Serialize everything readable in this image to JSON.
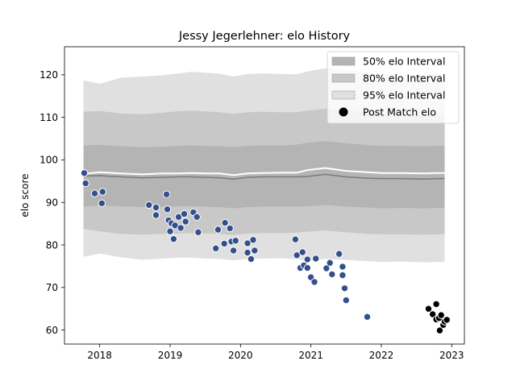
{
  "chart_data": {
    "type": "scatter",
    "title": "Jessy Jegerlehner: elo History",
    "xlabel": "",
    "ylabel": "elo score",
    "xlim": [
      2017.5,
      2023.18
    ],
    "ylim": [
      56.7,
      126.6
    ],
    "x_ticks": [
      {
        "value": 2018,
        "label": "2018"
      },
      {
        "value": 2019,
        "label": "2019"
      },
      {
        "value": 2020,
        "label": "2020"
      },
      {
        "value": 2021,
        "label": "2021"
      },
      {
        "value": 2022,
        "label": "2022"
      },
      {
        "value": 2023,
        "label": "2023"
      }
    ],
    "y_ticks": [
      {
        "value": 60,
        "label": "60"
      },
      {
        "value": 70,
        "label": "70"
      },
      {
        "value": 80,
        "label": "80"
      },
      {
        "value": 90,
        "label": "90"
      },
      {
        "value": 100,
        "label": "100"
      },
      {
        "value": 110,
        "label": "110"
      },
      {
        "value": 120,
        "label": "120"
      }
    ],
    "grid": false,
    "legend_position": "top-right",
    "legend": [
      {
        "label": "50% elo Interval",
        "color": "#b4b4b4",
        "kind": "patch"
      },
      {
        "label": "80% elo Interval",
        "color": "#c8c8c8",
        "kind": "patch"
      },
      {
        "label": "95% elo Interval",
        "color": "#e0e0e0",
        "kind": "patch"
      },
      {
        "label": "Post Match elo",
        "color": "#000000",
        "kind": "marker"
      }
    ],
    "band_x": [
      2017.77,
      2018.0,
      2018.3,
      2018.6,
      2018.9,
      2019.1,
      2019.3,
      2019.5,
      2019.7,
      2019.9,
      2020.1,
      2020.3,
      2020.6,
      2020.8,
      2020.95,
      2021.2,
      2021.5,
      2021.8,
      2022.0,
      2022.3,
      2022.6,
      2022.82,
      2022.9
    ],
    "median": [
      96.2,
      96.3,
      96.0,
      95.8,
      95.9,
      96.0,
      96.0,
      95.9,
      95.8,
      95.5,
      95.9,
      96.0,
      96.0,
      96.0,
      96.1,
      96.6,
      96.0,
      95.7,
      95.6,
      95.6,
      95.5,
      95.6,
      95.6
    ],
    "mean": [
      96.7,
      97.1,
      96.8,
      96.6,
      96.8,
      96.8,
      96.9,
      96.8,
      96.8,
      96.4,
      96.8,
      96.9,
      97.0,
      97.0,
      97.6,
      98.1,
      97.4,
      97.1,
      96.9,
      96.9,
      96.8,
      96.9,
      96.9
    ],
    "band50_low": [
      89.0,
      89.3,
      89.1,
      88.9,
      89.0,
      89.1,
      89.1,
      89.0,
      88.9,
      88.6,
      88.9,
      89.0,
      89.0,
      89.0,
      89.1,
      89.4,
      89.0,
      88.8,
      88.6,
      88.7,
      88.6,
      88.7,
      88.7
    ],
    "band50_high": [
      103.4,
      103.5,
      103.2,
      103.0,
      103.1,
      103.3,
      103.4,
      103.3,
      103.2,
      103.0,
      103.3,
      103.4,
      103.4,
      103.6,
      104.0,
      104.4,
      103.9,
      103.5,
      103.3,
      103.3,
      103.2,
      103.3,
      103.3
    ],
    "band80_low": [
      83.8,
      83.2,
      82.6,
      82.4,
      82.6,
      82.7,
      82.8,
      82.7,
      82.6,
      82.3,
      82.7,
      82.8,
      82.8,
      82.9,
      83.1,
      83.4,
      83.0,
      82.6,
      82.5,
      82.5,
      82.4,
      82.5,
      82.5
    ],
    "band80_high": [
      111.3,
      111.5,
      110.9,
      110.7,
      111.1,
      111.4,
      111.6,
      111.4,
      111.2,
      110.8,
      111.2,
      111.3,
      111.2,
      111.2,
      111.6,
      112.0,
      111.7,
      111.1,
      110.9,
      110.9,
      110.7,
      110.9,
      110.9
    ],
    "band95_low": [
      77.2,
      78.0,
      77.1,
      76.5,
      76.8,
      77.0,
      77.0,
      76.8,
      76.7,
      76.4,
      76.7,
      76.8,
      76.9,
      76.6,
      76.3,
      76.7,
      76.5,
      76.2,
      76.0,
      76.1,
      75.9,
      76.0,
      76.0
    ],
    "band95_high": [
      118.7,
      117.9,
      119.3,
      119.6,
      119.9,
      120.3,
      120.7,
      120.5,
      120.3,
      119.6,
      120.2,
      120.3,
      120.2,
      120.1,
      120.8,
      121.5,
      121.1,
      120.4,
      120.2,
      120.1,
      119.9,
      120.1,
      120.1
    ],
    "series": [
      {
        "name": "",
        "color": "#34508c",
        "points": [
          [
            2017.78,
            96.9
          ],
          [
            2017.8,
            94.5
          ],
          [
            2017.93,
            92.1
          ],
          [
            2018.04,
            92.5
          ],
          [
            2018.03,
            89.8
          ],
          [
            2018.7,
            89.4
          ],
          [
            2018.8,
            88.8
          ],
          [
            2018.8,
            87.0
          ],
          [
            2018.95,
            91.9
          ],
          [
            2018.96,
            88.4
          ],
          [
            2018.98,
            85.8
          ],
          [
            2019.0,
            83.2
          ],
          [
            2019.05,
            81.4
          ],
          [
            2019.02,
            85.1
          ],
          [
            2019.07,
            84.6
          ],
          [
            2019.12,
            86.6
          ],
          [
            2019.15,
            84.0
          ],
          [
            2019.2,
            87.3
          ],
          [
            2019.22,
            85.5
          ],
          [
            2019.33,
            87.7
          ],
          [
            2019.38,
            86.6
          ],
          [
            2019.4,
            83.0
          ],
          [
            2019.65,
            79.2
          ],
          [
            2019.68,
            83.6
          ],
          [
            2019.77,
            80.3
          ],
          [
            2019.78,
            85.2
          ],
          [
            2019.87,
            80.8
          ],
          [
            2019.85,
            83.9
          ],
          [
            2019.9,
            78.7
          ],
          [
            2019.93,
            81.0
          ],
          [
            2020.1,
            80.4
          ],
          [
            2020.1,
            78.2
          ],
          [
            2020.18,
            81.2
          ],
          [
            2020.2,
            78.7
          ],
          [
            2020.15,
            76.7
          ],
          [
            2020.78,
            81.3
          ],
          [
            2020.8,
            77.6
          ],
          [
            2020.85,
            74.6
          ],
          [
            2020.88,
            78.3
          ],
          [
            2020.9,
            75.2
          ],
          [
            2020.95,
            74.6
          ],
          [
            2020.95,
            76.6
          ],
          [
            2021.0,
            72.4
          ],
          [
            2021.05,
            71.3
          ],
          [
            2021.07,
            76.8
          ],
          [
            2021.22,
            74.5
          ],
          [
            2021.27,
            75.8
          ],
          [
            2021.3,
            73.1
          ],
          [
            2021.4,
            77.9
          ],
          [
            2021.45,
            74.9
          ],
          [
            2021.45,
            72.9
          ],
          [
            2021.48,
            69.8
          ],
          [
            2021.5,
            67.0
          ],
          [
            2021.8,
            63.1
          ]
        ]
      },
      {
        "name": "",
        "color": "#000000",
        "points": [
          [
            2022.67,
            65.0
          ],
          [
            2022.73,
            63.7
          ],
          [
            2022.78,
            66.1
          ],
          [
            2022.78,
            62.5
          ],
          [
            2022.82,
            62.8
          ],
          [
            2022.83,
            59.9
          ],
          [
            2022.85,
            63.5
          ],
          [
            2022.88,
            61.2
          ],
          [
            2022.9,
            62.0
          ],
          [
            2022.93,
            62.4
          ]
        ]
      }
    ]
  }
}
